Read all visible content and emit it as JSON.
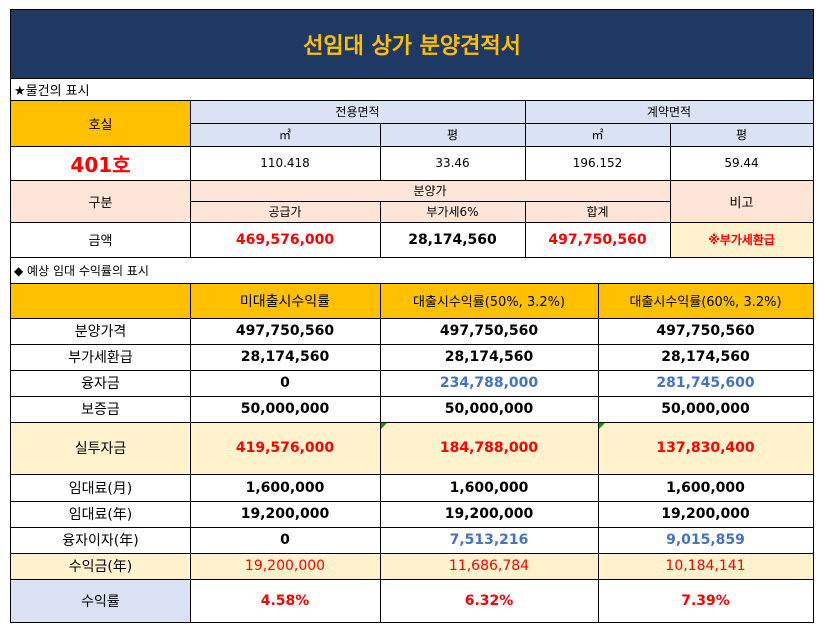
{
  "title": "선임대 상가 분양견적서",
  "section1": {
    "heading": "★물건의 표시",
    "hosil_label": "호실",
    "exclusive_area_label": "전용면적",
    "contract_area_label": "계약면적",
    "unit_sqm": "㎡",
    "unit_pyeong": "평",
    "unit_no": "401호",
    "exclusive_sqm": "110.418",
    "exclusive_pyeong": "33.46",
    "contract_sqm": "196.152",
    "contract_pyeong": "59.44",
    "category_label": "구분",
    "sale_price_label": "분양가",
    "note_label": "비고",
    "supply_label": "공급가",
    "vat_label": "부가세6%",
    "total_label": "합계",
    "amount_label": "금액",
    "supply_value": "469,576,000",
    "vat_value": "28,174,560",
    "total_value": "497,750,560",
    "note_value": "※부가세환급"
  },
  "section2": {
    "heading": "◆ 예상 임대 수익률의 표시",
    "columns": [
      "미대출시수익률",
      "대출시수익률(50%, 3.2%)",
      "대출시수익률(60%, 3.2%)"
    ],
    "rows": [
      {
        "label": "분양가격",
        "values": [
          "497,750,560",
          "497,750,560",
          "497,750,560"
        ]
      },
      {
        "label": "부가세환급",
        "values": [
          "28,174,560",
          "28,174,560",
          "28,174,560"
        ]
      },
      {
        "label": "융자금",
        "values": [
          "0",
          "234,788,000",
          "281,745,600"
        ]
      },
      {
        "label": "보증금",
        "values": [
          "50,000,000",
          "50,000,000",
          "50,000,000"
        ]
      },
      {
        "label": "실투자금",
        "values": [
          "419,576,000",
          "184,788,000",
          "137,830,400"
        ]
      },
      {
        "label": "임대료(月)",
        "values": [
          "1,600,000",
          "1,600,000",
          "1,600,000"
        ]
      },
      {
        "label": "임대료(年)",
        "values": [
          "19,200,000",
          "19,200,000",
          "19,200,000"
        ]
      },
      {
        "label": "융자이자(年)",
        "values": [
          "0",
          "7,513,216",
          "9,015,859"
        ]
      },
      {
        "label": "수익금(年)",
        "values": [
          "19,200,000",
          "11,686,784",
          "10,184,141"
        ]
      },
      {
        "label": "수익률",
        "values": [
          "4.58%",
          "6.32%",
          "7.39%"
        ]
      }
    ]
  },
  "colors": {
    "title_bg": "#1f3864",
    "title_text": "#ffc000",
    "header_gold": "#ffc000",
    "header_blue": "#dae3f3",
    "header_peach": "#fce4d6",
    "highlight_cream": "#fff2cc",
    "yield_row": "#d9e1f2",
    "emphasis_red": "#ff0000",
    "linked_blue": "#4472c4"
  }
}
